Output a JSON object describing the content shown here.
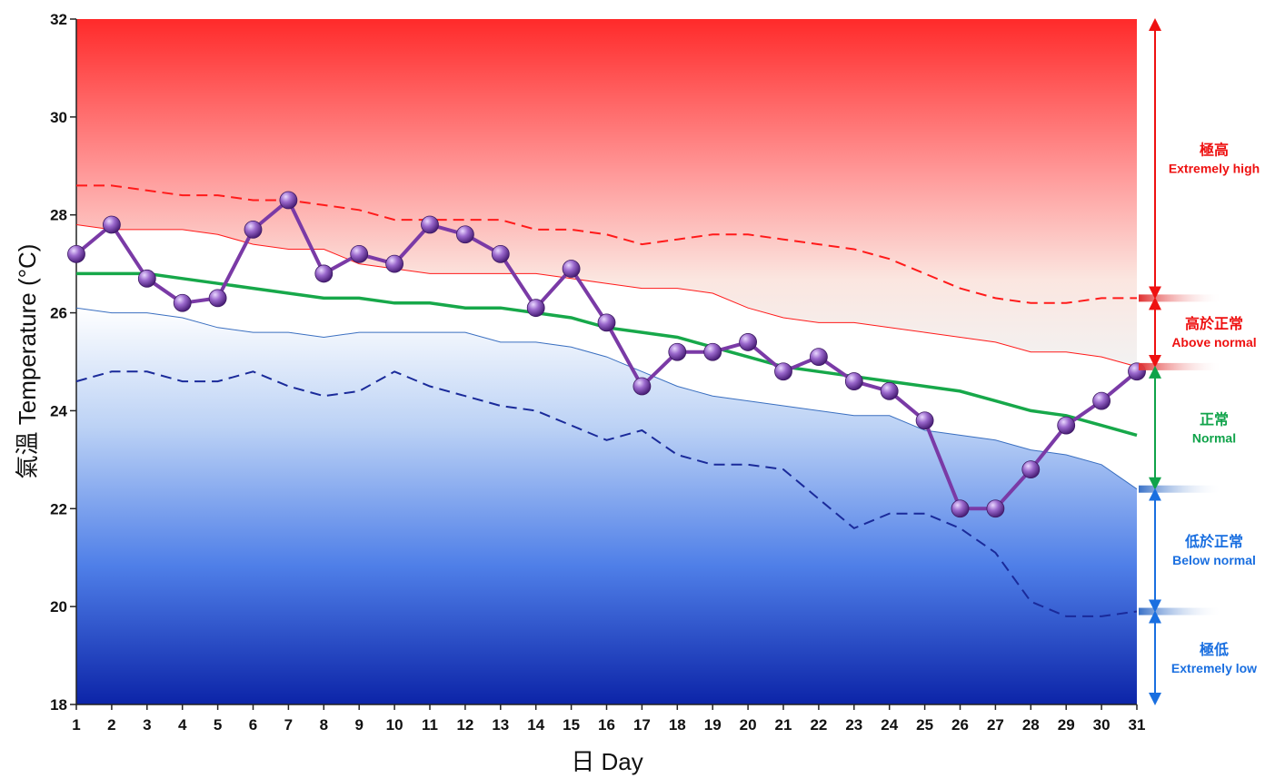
{
  "chart_data": {
    "type": "line",
    "xlabel": "日 Day",
    "ylabel": "氣溫 Temperature (°C)",
    "ylim": [
      18,
      32
    ],
    "xlim": [
      1,
      31
    ],
    "yticks": [
      18,
      20,
      22,
      24,
      26,
      28,
      30,
      32
    ],
    "x": [
      1,
      2,
      3,
      4,
      5,
      6,
      7,
      8,
      9,
      10,
      11,
      12,
      13,
      14,
      15,
      16,
      17,
      18,
      19,
      20,
      21,
      22,
      23,
      24,
      25,
      26,
      27,
      28,
      29,
      30,
      31
    ],
    "daily_temperature": [
      27.2,
      27.8,
      26.7,
      26.2,
      26.3,
      27.7,
      28.3,
      26.8,
      27.2,
      27.0,
      27.8,
      27.6,
      27.2,
      26.1,
      26.9,
      25.8,
      24.5,
      25.2,
      25.2,
      25.4,
      24.8,
      25.1,
      24.6,
      24.4,
      23.8,
      22.0,
      22.0,
      22.8,
      23.7,
      24.2,
      24.8
    ],
    "normal": [
      26.8,
      26.8,
      26.8,
      26.7,
      26.6,
      26.5,
      26.4,
      26.3,
      26.3,
      26.2,
      26.2,
      26.1,
      26.1,
      26.0,
      25.9,
      25.7,
      25.6,
      25.5,
      25.3,
      25.1,
      24.9,
      24.8,
      24.7,
      24.6,
      24.5,
      24.4,
      24.2,
      24.0,
      23.9,
      23.7,
      23.5
    ],
    "above_normal_threshold": [
      27.8,
      27.7,
      27.7,
      27.7,
      27.6,
      27.4,
      27.3,
      27.3,
      27.0,
      26.9,
      26.8,
      26.8,
      26.8,
      26.8,
      26.7,
      26.6,
      26.5,
      26.5,
      26.4,
      26.1,
      25.9,
      25.8,
      25.8,
      25.7,
      25.6,
      25.5,
      25.4,
      25.2,
      25.2,
      25.1,
      24.9
    ],
    "below_normal_threshold": [
      26.1,
      26.0,
      26.0,
      25.9,
      25.7,
      25.6,
      25.6,
      25.5,
      25.6,
      25.6,
      25.6,
      25.6,
      25.4,
      25.4,
      25.3,
      25.1,
      24.8,
      24.5,
      24.3,
      24.2,
      24.1,
      24.0,
      23.9,
      23.9,
      23.6,
      23.5,
      23.4,
      23.2,
      23.1,
      22.9,
      22.4
    ],
    "extremely_high_threshold": [
      28.6,
      28.6,
      28.5,
      28.4,
      28.4,
      28.3,
      28.3,
      28.2,
      28.1,
      27.9,
      27.9,
      27.9,
      27.9,
      27.7,
      27.7,
      27.6,
      27.4,
      27.5,
      27.6,
      27.6,
      27.5,
      27.4,
      27.3,
      27.1,
      26.8,
      26.5,
      26.3,
      26.2,
      26.2,
      26.3,
      26.3
    ],
    "extremely_low_threshold": [
      24.6,
      24.8,
      24.8,
      24.6,
      24.6,
      24.8,
      24.5,
      24.3,
      24.4,
      24.8,
      24.5,
      24.3,
      24.1,
      24.0,
      23.7,
      23.4,
      23.6,
      23.1,
      22.9,
      22.9,
      22.8,
      22.2,
      21.6,
      21.9,
      21.9,
      21.6,
      21.1,
      20.1,
      19.8,
      19.8,
      19.9
    ],
    "bands": [
      {
        "zh": "極高",
        "en": "Extremely high",
        "range": [
          26.3,
          32
        ],
        "color": "#ee1111"
      },
      {
        "zh": "高於正常",
        "en": "Above normal",
        "range": [
          24.9,
          26.3
        ],
        "color": "#ee1111"
      },
      {
        "zh": "正常",
        "en": "Normal",
        "range": [
          22.4,
          24.9
        ],
        "color": "#10a34a"
      },
      {
        "zh": "低於正常",
        "en": "Below normal",
        "range": [
          19.9,
          22.4
        ],
        "color": "#1a6fe0"
      },
      {
        "zh": "極低",
        "en": "Extremely low",
        "range": [
          18,
          19.9
        ],
        "color": "#1a6fe0"
      }
    ],
    "colors": {
      "daily": "#7a3aa6",
      "marker": "#8a5ab8",
      "normal": "#17a84a",
      "high": "#ff1a1a",
      "low": "#1a2a9a",
      "below_line": "#3a6fc0"
    }
  }
}
